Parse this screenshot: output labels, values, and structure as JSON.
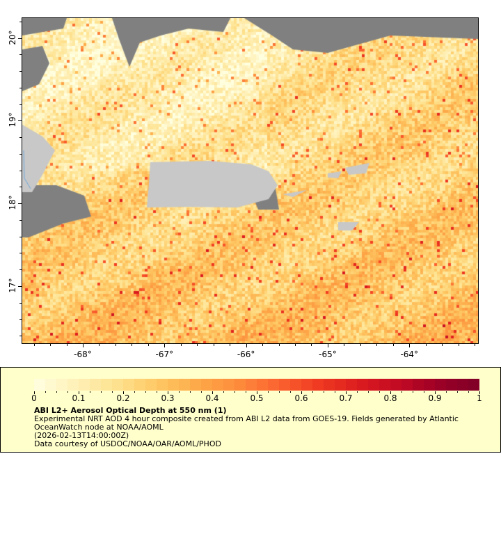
{
  "map": {
    "lon_range": [
      -68.75,
      -63.15
    ],
    "lat_range": [
      16.3,
      20.25
    ],
    "lon_ticks": [
      {
        "v": -68,
        "label": "-68°"
      },
      {
        "v": -67,
        "label": "-67°"
      },
      {
        "v": -66,
        "label": "-66°"
      },
      {
        "v": -65,
        "label": "-65°"
      },
      {
        "v": -64,
        "label": "-64°"
      }
    ],
    "lat_ticks": [
      {
        "v": 20,
        "label": "20°"
      },
      {
        "v": 19,
        "label": "19°"
      },
      {
        "v": 18,
        "label": "18°"
      },
      {
        "v": 17,
        "label": "17°"
      }
    ],
    "colors": {
      "land": "#c8c8c8",
      "no_data": "#808080",
      "water_line": "#6fa8dc"
    }
  },
  "legend": {
    "colorbar_range": [
      0,
      1
    ],
    "colorbar_labels": [
      "0",
      "0.1",
      "0.2",
      "0.3",
      "0.4",
      "0.5",
      "0.6",
      "0.7",
      "0.8",
      "0.9",
      "1"
    ],
    "colorbar_stops": [
      "#ffffe0",
      "#fff0b8",
      "#fee391",
      "#fec965",
      "#fdab4a",
      "#fd8c3c",
      "#fc6530",
      "#f03b22",
      "#dc1c1e",
      "#c20a24",
      "#9c0027",
      "#7f0026"
    ],
    "title": "ABI L2+ Aerosol Optical Depth at 550 nm (1)",
    "line1": "Experimental NRT AOD 4 hour composite created from ABI L2 data from GOES-19. Fields generated by Atlantic",
    "line2": "OceanWatch node at NOAA/AOML",
    "line3": "(2026-02-13T14:00:00Z)",
    "line4": "Data courtesy of USDOC/NOAA/OAR/AOML/PHOD"
  }
}
